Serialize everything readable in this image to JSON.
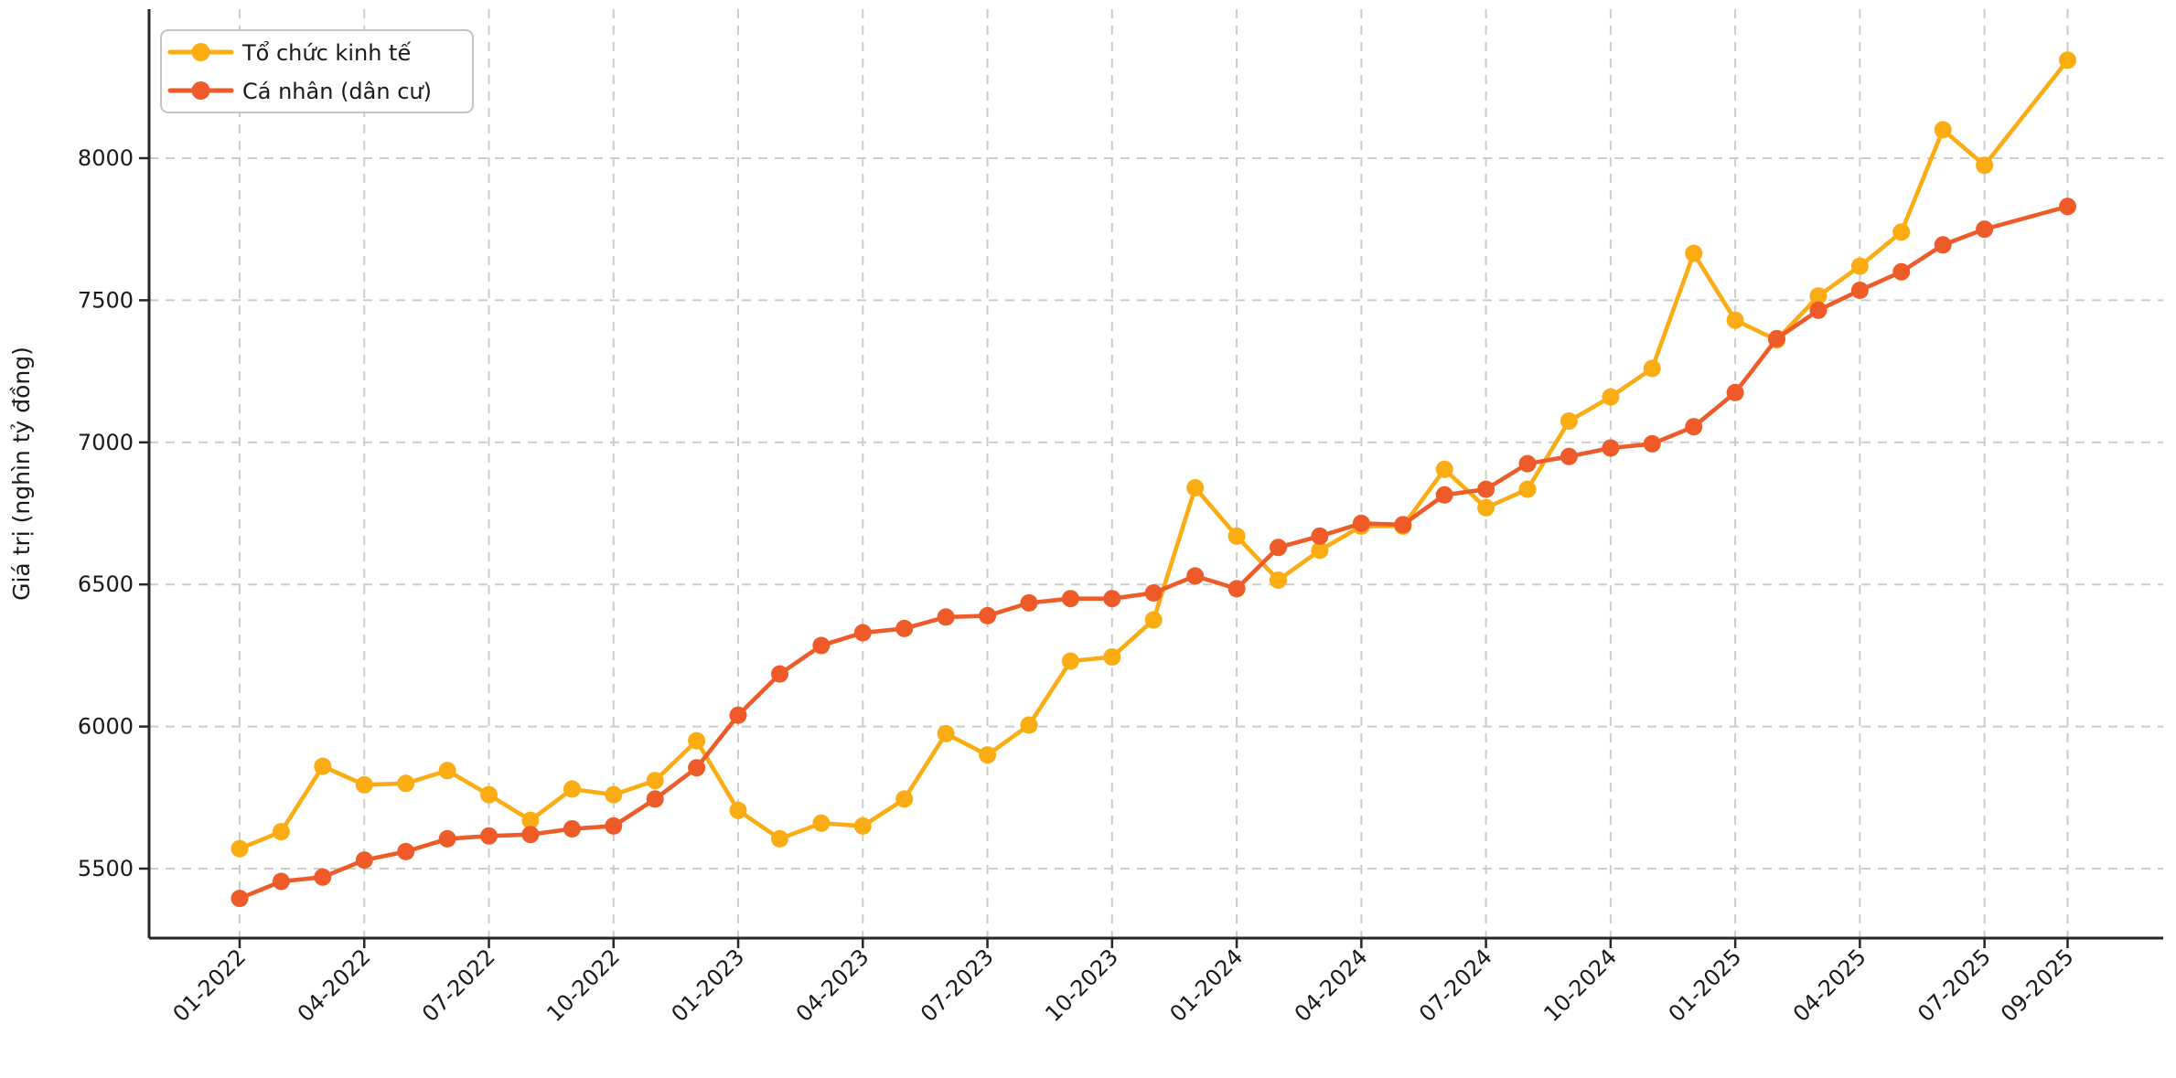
{
  "chart_data": {
    "type": "line",
    "title": "",
    "xlabel": "",
    "ylabel": "Giá trị (nghìn tỷ đồng)",
    "grid": true,
    "legend_position": "upper left",
    "ylim": [
      5255,
      8510
    ],
    "yticks": [
      5500,
      6000,
      6500,
      7000,
      7500,
      8000
    ],
    "x_tick_labels": [
      "01-2022",
      "04-2022",
      "07-2022",
      "10-2022",
      "01-2023",
      "04-2023",
      "07-2023",
      "10-2023",
      "01-2024",
      "04-2024",
      "07-2024",
      "10-2024",
      "01-2025",
      "04-2025",
      "07-2025",
      "09-2025"
    ],
    "x": [
      "01-2022",
      "02-2022",
      "03-2022",
      "04-2022",
      "05-2022",
      "06-2022",
      "07-2022",
      "08-2022",
      "09-2022",
      "10-2022",
      "11-2022",
      "12-2022",
      "01-2023",
      "02-2023",
      "03-2023",
      "04-2023",
      "05-2023",
      "06-2023",
      "07-2023",
      "08-2023",
      "09-2023",
      "10-2023",
      "11-2023",
      "12-2023",
      "01-2024",
      "02-2024",
      "03-2024",
      "04-2024",
      "05-2024",
      "06-2024",
      "07-2024",
      "08-2024",
      "09-2024",
      "10-2024",
      "11-2024",
      "12-2024",
      "01-2025",
      "02-2025",
      "03-2025",
      "04-2025",
      "05-2025",
      "06-2025",
      "07-2025",
      "09-2025"
    ],
    "series": [
      {
        "name": "Tổ chức kinh tế",
        "color": "#FBAC12",
        "values": [
          5570,
          5630,
          5860,
          5795,
          5800,
          5845,
          5760,
          5670,
          5780,
          5760,
          5810,
          5950,
          5705,
          5605,
          5660,
          5650,
          5745,
          5975,
          5900,
          6005,
          6230,
          6245,
          6375,
          6840,
          6670,
          6515,
          6620,
          6705,
          6705,
          6905,
          6770,
          6835,
          7075,
          7160,
          7260,
          7665,
          7430,
          7360,
          7515,
          7620,
          7740,
          8100,
          7975,
          8345
        ]
      },
      {
        "name": "Cá nhân (dân cư)",
        "color": "#EF5B28",
        "values": [
          5395,
          5455,
          5470,
          5530,
          5560,
          5605,
          5615,
          5620,
          5640,
          5650,
          5745,
          5855,
          6040,
          6185,
          6285,
          6330,
          6345,
          6385,
          6390,
          6435,
          6450,
          6450,
          6470,
          6530,
          6485,
          6630,
          6670,
          6715,
          6710,
          6815,
          6835,
          6925,
          6950,
          6980,
          6995,
          7055,
          7175,
          7365,
          7465,
          7535,
          7600,
          7695,
          7750,
          7830
        ]
      }
    ],
    "style": {
      "grid_color": "#cccccc",
      "spine_color": "#262626",
      "text_color": "#1a1a1a",
      "legend_border_color": "#c4c4c4",
      "background": "#ffffff"
    }
  }
}
